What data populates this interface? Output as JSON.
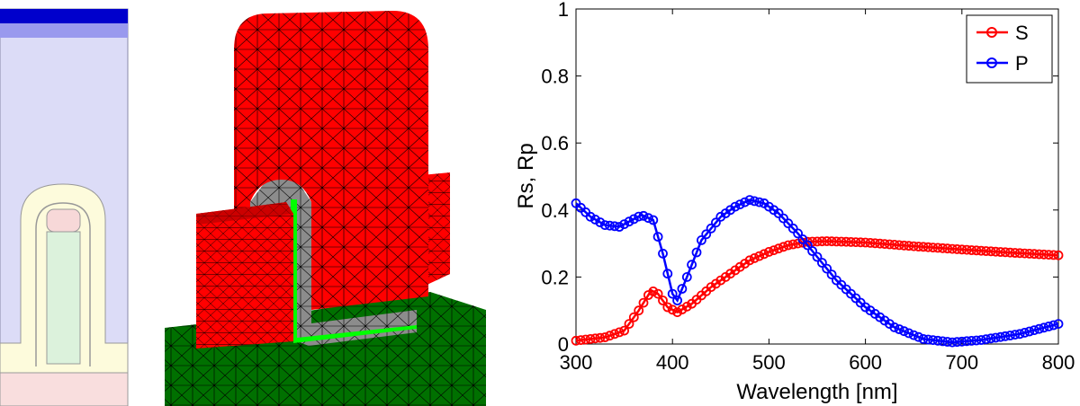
{
  "colors": {
    "series_s": "#ff0000",
    "series_p": "#0000ff",
    "cross_top_dark": "#0000cc",
    "cross_top_light": "#9999ee",
    "cross_oxide": "#dcdcf7",
    "cross_liner": "#fdfbdc",
    "cross_fin": "#dcf2dc",
    "cross_cap": "#f7d8d8",
    "cross_substrate": "#f9dede",
    "mesh_red": "#ff0000",
    "mesh_green": "#007000",
    "mesh_gray": "#8c8c8c",
    "mesh_bright_green": "#00ff00"
  },
  "chart_data": {
    "type": "line",
    "xlabel": "Wavelength [nm]",
    "ylabel": "Rs, Rp",
    "xlim": [
      300,
      800
    ],
    "ylim": [
      0,
      1
    ],
    "x_ticks": [
      "300",
      "400",
      "500",
      "600",
      "700",
      "800"
    ],
    "y_ticks": [
      "0",
      "0.2",
      "0.4",
      "0.6",
      "0.8",
      "1"
    ],
    "legend_position": "top-right",
    "grid": false,
    "series": [
      {
        "name": "S",
        "color": "#ff0000",
        "marker": "circle",
        "points": [
          [
            300,
            0.01
          ],
          [
            330,
            0.02
          ],
          [
            350,
            0.04
          ],
          [
            365,
            0.1
          ],
          [
            378,
            0.16
          ],
          [
            385,
            0.15
          ],
          [
            395,
            0.11
          ],
          [
            405,
            0.095
          ],
          [
            420,
            0.12
          ],
          [
            440,
            0.17
          ],
          [
            460,
            0.21
          ],
          [
            480,
            0.25
          ],
          [
            500,
            0.275
          ],
          [
            520,
            0.295
          ],
          [
            540,
            0.305
          ],
          [
            560,
            0.307
          ],
          [
            600,
            0.303
          ],
          [
            650,
            0.292
          ],
          [
            700,
            0.282
          ],
          [
            750,
            0.273
          ],
          [
            800,
            0.265
          ]
        ]
      },
      {
        "name": "P",
        "color": "#0000ff",
        "marker": "circle",
        "points": [
          [
            300,
            0.42
          ],
          [
            315,
            0.38
          ],
          [
            330,
            0.355
          ],
          [
            345,
            0.35
          ],
          [
            358,
            0.37
          ],
          [
            368,
            0.385
          ],
          [
            380,
            0.37
          ],
          [
            390,
            0.27
          ],
          [
            400,
            0.15
          ],
          [
            405,
            0.13
          ],
          [
            415,
            0.2
          ],
          [
            430,
            0.31
          ],
          [
            450,
            0.38
          ],
          [
            465,
            0.41
          ],
          [
            480,
            0.43
          ],
          [
            495,
            0.42
          ],
          [
            510,
            0.39
          ],
          [
            530,
            0.33
          ],
          [
            550,
            0.26
          ],
          [
            570,
            0.19
          ],
          [
            600,
            0.11
          ],
          [
            630,
            0.05
          ],
          [
            660,
            0.015
          ],
          [
            690,
            0.005
          ],
          [
            720,
            0.012
          ],
          [
            760,
            0.03
          ],
          [
            800,
            0.06
          ]
        ]
      }
    ]
  }
}
